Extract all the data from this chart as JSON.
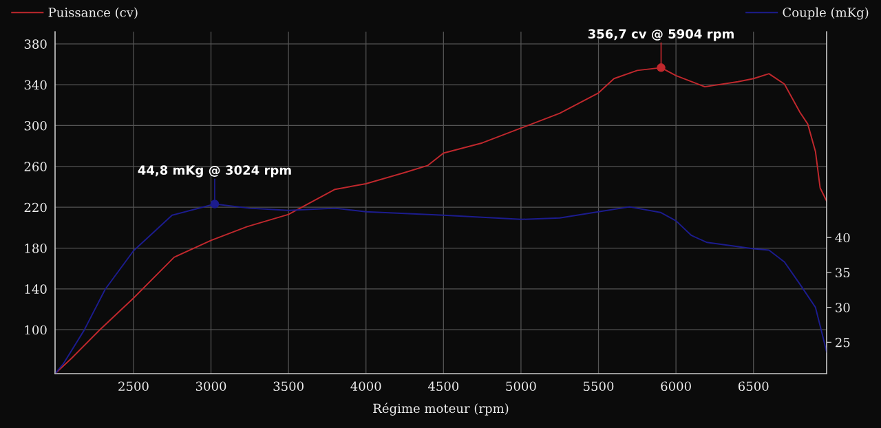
{
  "chart_data": {
    "type": "line",
    "xlabel": "Régime moteur (rpm)",
    "xlim": [
      1994,
      6972
    ],
    "xticks": [
      2500,
      3000,
      3500,
      4000,
      4500,
      5000,
      5500,
      6000,
      6500
    ],
    "ylim": [
      57,
      392
    ],
    "yticks": [
      100,
      140,
      180,
      220,
      260,
      300,
      340,
      380
    ],
    "y2lim": [
      20.5,
      69.5
    ],
    "y2ticks": [
      25,
      30,
      35,
      40
    ],
    "grid": true,
    "legend": "top",
    "line_style": "solid",
    "series": [
      {
        "name": "Puissance (cv)",
        "color": "#c0282d",
        "x": [
          1994,
          2100,
          2283,
          2500,
          2762,
          3000,
          3233,
          3500,
          3800,
          4000,
          4250,
          4400,
          4500,
          4750,
          5000,
          5250,
          5500,
          5600,
          5750,
          5904,
          6000,
          6186,
          6400,
          6500,
          6600,
          6700,
          6800,
          6850,
          6900,
          6930,
          6972
        ],
        "values": [
          57,
          72,
          100,
          131,
          171,
          187.5,
          201,
          213,
          237.5,
          243,
          254,
          261,
          273,
          283,
          297.5,
          312,
          332,
          346,
          354,
          356.7,
          349,
          338,
          343,
          346,
          350.8,
          340.6,
          313,
          301.6,
          274.6,
          239,
          226
        ]
      },
      {
        "name": "Couple (mKg)",
        "color": "#1c1c8e",
        "axis": "y2",
        "x": [
          1994,
          2050,
          2181,
          2318,
          2500,
          2749,
          3024,
          3250,
          3500,
          3800,
          4000,
          4500,
          5000,
          5250,
          5500,
          5700,
          5900,
          6000,
          6100,
          6200,
          6500,
          6600,
          6700,
          6800,
          6900,
          6940,
          6972
        ],
        "values": [
          20.5,
          22,
          26.7,
          32.6,
          38.1,
          43.2,
          44.8,
          44.2,
          43.9,
          44.2,
          43.7,
          43.2,
          42.6,
          42.8,
          43.7,
          44.4,
          43.6,
          42.4,
          40.3,
          39.3,
          38.4,
          38.2,
          36.5,
          33.3,
          30.0,
          26.5,
          23.6
        ]
      }
    ],
    "annotations": [
      {
        "text": "356,7 cv @ 5904 rpm",
        "x": 5904,
        "y": 356.7
      },
      {
        "text": "44,8 mKg @ 3024 rpm",
        "x": 3024
      }
    ]
  }
}
